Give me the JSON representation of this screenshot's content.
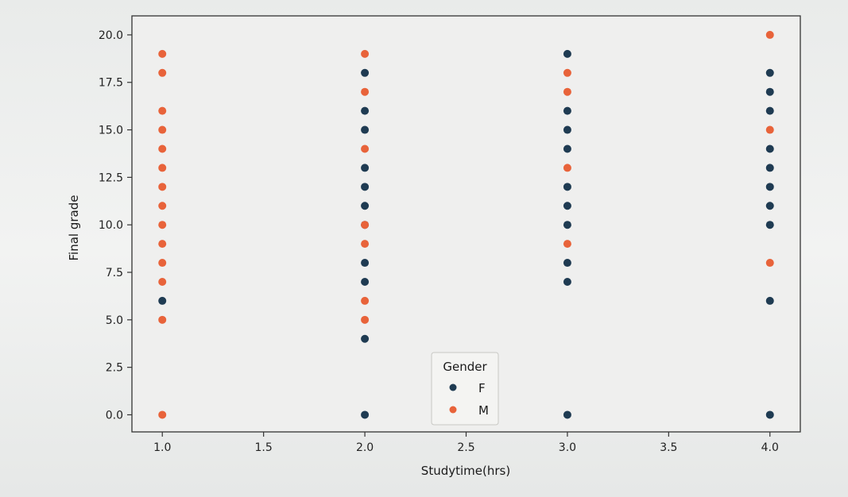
{
  "chart_data": {
    "type": "scatter",
    "xlabel": "Studytime(hrs)",
    "ylabel": "Final grade",
    "xlim": [
      0.85,
      4.15
    ],
    "ylim": [
      -0.9,
      21.0
    ],
    "xticks": [
      1.0,
      1.5,
      2.0,
      2.5,
      3.0,
      3.5,
      4.0
    ],
    "xtick_labels": [
      "1.0",
      "1.5",
      "2.0",
      "2.5",
      "3.0",
      "3.5",
      "4.0"
    ],
    "yticks": [
      0.0,
      2.5,
      5.0,
      7.5,
      10.0,
      12.5,
      15.0,
      17.5,
      20.0
    ],
    "ytick_labels": [
      "0.0",
      "2.5",
      "5.0",
      "7.5",
      "10.0",
      "12.5",
      "15.0",
      "17.5",
      "20.0"
    ],
    "grid": false,
    "legend": {
      "title": "Gender",
      "placement": "lower-center"
    },
    "series": [
      {
        "name": "F",
        "color": "#1f3b52",
        "points": [
          [
            1,
            6
          ],
          [
            2,
            0
          ],
          [
            2,
            4
          ],
          [
            2,
            7
          ],
          [
            2,
            8
          ],
          [
            2,
            10
          ],
          [
            2,
            11
          ],
          [
            2,
            12
          ],
          [
            2,
            13
          ],
          [
            2,
            15
          ],
          [
            2,
            16
          ],
          [
            2,
            18
          ],
          [
            3,
            0
          ],
          [
            3,
            7
          ],
          [
            3,
            8
          ],
          [
            3,
            10
          ],
          [
            3,
            11
          ],
          [
            3,
            12
          ],
          [
            3,
            14
          ],
          [
            3,
            15
          ],
          [
            3,
            16
          ],
          [
            3,
            19
          ],
          [
            4,
            0
          ],
          [
            4,
            6
          ],
          [
            4,
            10
          ],
          [
            4,
            11
          ],
          [
            4,
            12
          ],
          [
            4,
            13
          ],
          [
            4,
            14
          ],
          [
            4,
            16
          ],
          [
            4,
            17
          ],
          [
            4,
            18
          ]
        ]
      },
      {
        "name": "M",
        "color": "#e8633a",
        "points": [
          [
            1,
            0
          ],
          [
            1,
            5
          ],
          [
            1,
            7
          ],
          [
            1,
            8
          ],
          [
            1,
            9
          ],
          [
            1,
            10
          ],
          [
            1,
            11
          ],
          [
            1,
            12
          ],
          [
            1,
            13
          ],
          [
            1,
            14
          ],
          [
            1,
            15
          ],
          [
            1,
            16
          ],
          [
            1,
            18
          ],
          [
            1,
            19
          ],
          [
            2,
            5
          ],
          [
            2,
            6
          ],
          [
            2,
            9
          ],
          [
            2,
            10
          ],
          [
            2,
            14
          ],
          [
            2,
            17
          ],
          [
            2,
            19
          ],
          [
            3,
            9
          ],
          [
            3,
            13
          ],
          [
            3,
            17
          ],
          [
            3,
            18
          ],
          [
            4,
            8
          ],
          [
            4,
            15
          ],
          [
            4,
            20
          ]
        ]
      }
    ]
  }
}
